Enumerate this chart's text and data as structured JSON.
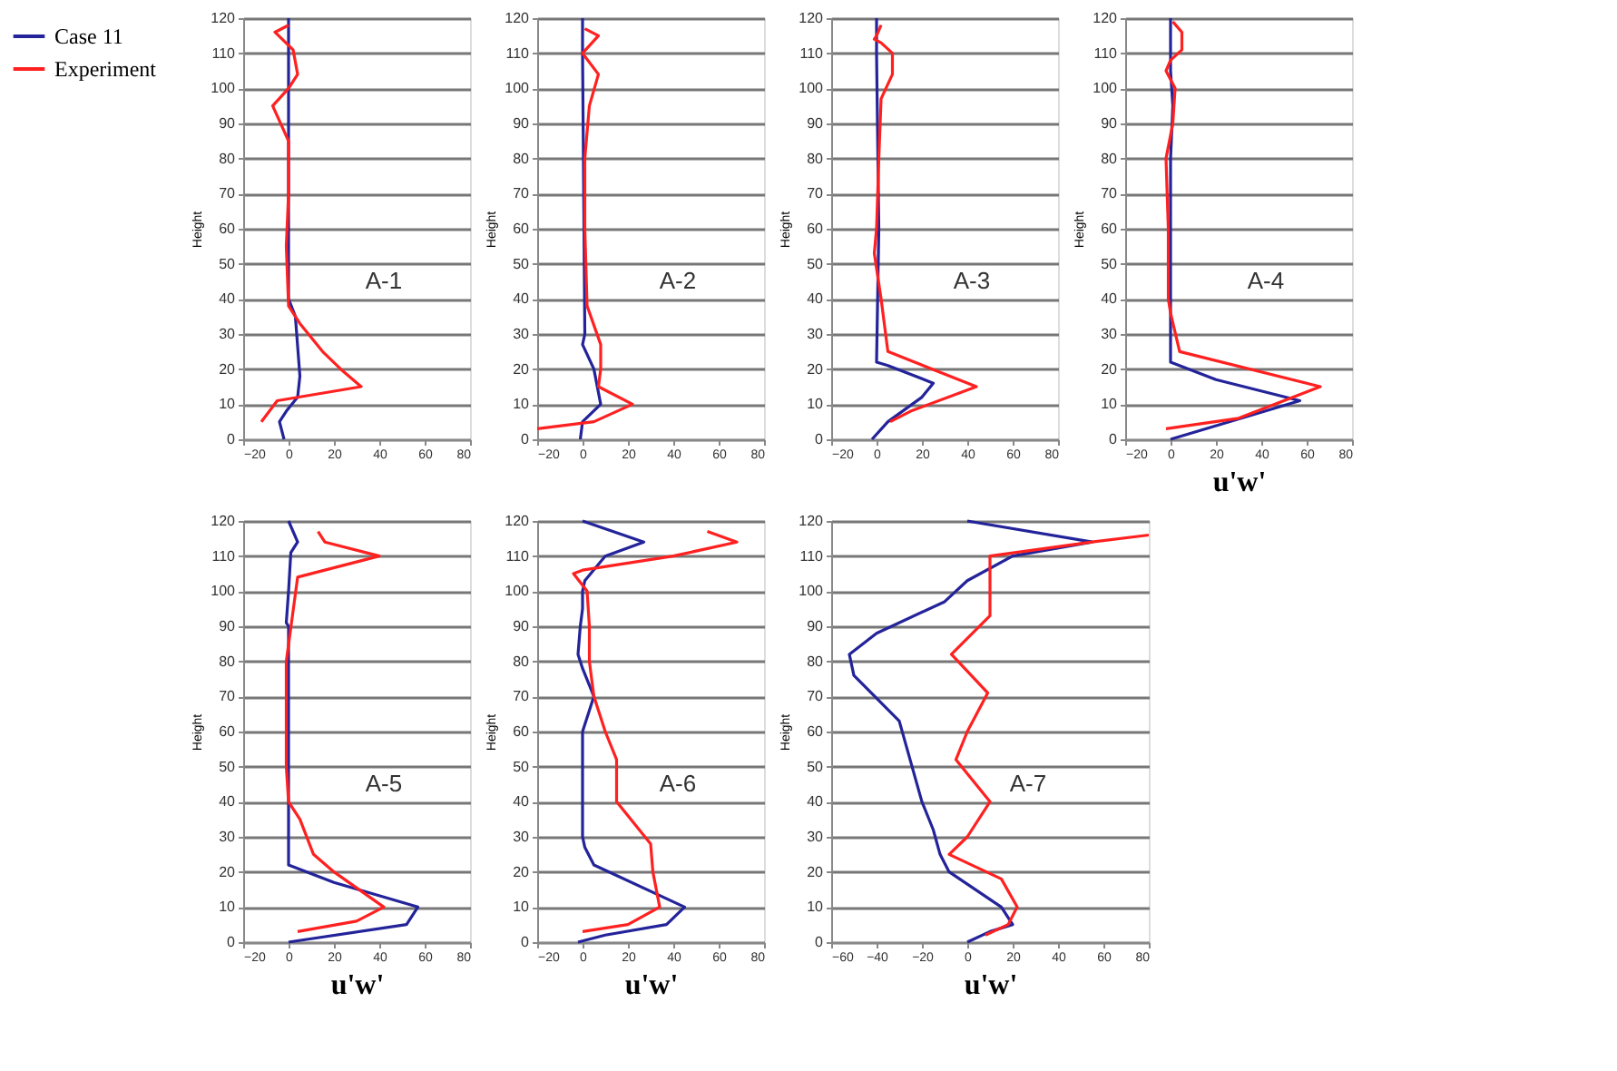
{
  "chart_data": [
    {
      "type": "line",
      "ylabel": "Height",
      "annotations": [
        "A-1"
      ],
      "xlim": [
        -20,
        80
      ],
      "xticks": [
        -20,
        0,
        20,
        40,
        60,
        80
      ],
      "ylim": [
        0,
        120
      ],
      "yticks": [
        0,
        10,
        20,
        30,
        40,
        50,
        60,
        70,
        80,
        90,
        100,
        110,
        120
      ],
      "grid": "y",
      "legend": "left",
      "series": [
        {
          "name": "Case 11",
          "color": "#23239a",
          "x": [
            0,
            0,
            0,
            3,
            5,
            4,
            -1,
            -4,
            -2
          ],
          "values": [
            120,
            85,
            40,
            35,
            18,
            12,
            8,
            5,
            0
          ]
        },
        {
          "name": "Experiment",
          "color": "#ff2020",
          "x": [
            0,
            -6,
            2,
            4,
            0,
            -7,
            0,
            0,
            -1,
            0,
            5,
            15,
            23,
            32,
            -5,
            -12
          ],
          "values": [
            118,
            116,
            111,
            104,
            100,
            95,
            85,
            70,
            55,
            38,
            33,
            25,
            20,
            15,
            11,
            5
          ]
        }
      ]
    },
    {
      "type": "line",
      "ylabel": "Height",
      "annotations": [
        "A-2"
      ],
      "xlim": [
        -20,
        80
      ],
      "xticks": [
        -20,
        0,
        20,
        40,
        60,
        80
      ],
      "ylim": [
        0,
        120
      ],
      "yticks": [
        0,
        10,
        20,
        30,
        40,
        50,
        60,
        70,
        80,
        90,
        100,
        110,
        120
      ],
      "grid": "y",
      "series": [
        {
          "color": "#23239a",
          "x": [
            0,
            0,
            1,
            0,
            5,
            8,
            0,
            -1
          ],
          "values": [
            120,
            110,
            30,
            27,
            20,
            10,
            5,
            0
          ]
        },
        {
          "color": "#ff2020",
          "x": [
            1,
            7,
            0,
            7,
            3,
            1,
            1,
            2,
            8,
            8,
            7,
            22,
            5,
            -20
          ],
          "values": [
            117,
            115,
            110,
            104,
            95,
            80,
            60,
            38,
            27,
            20,
            15,
            10,
            5,
            3
          ]
        }
      ]
    },
    {
      "type": "line",
      "ylabel": "Height",
      "annotations": [
        "A-3"
      ],
      "xlim": [
        -20,
        80
      ],
      "xticks": [
        -20,
        0,
        20,
        40,
        60,
        80
      ],
      "ylim": [
        0,
        120
      ],
      "yticks": [
        0,
        10,
        20,
        30,
        40,
        50,
        60,
        70,
        80,
        90,
        100,
        110,
        120
      ],
      "grid": "y",
      "series": [
        {
          "color": "#23239a",
          "x": [
            0,
            0,
            1,
            0,
            5,
            25,
            20,
            5,
            -2
          ],
          "values": [
            120,
            110,
            60,
            22,
            21,
            16,
            12,
            5,
            0
          ]
        },
        {
          "color": "#ff2020",
          "x": [
            2,
            0,
            -1,
            2,
            7,
            7,
            2,
            1,
            0,
            -1,
            2,
            5,
            44,
            15,
            6
          ],
          "values": [
            118,
            115,
            114,
            113,
            110,
            104,
            97,
            80,
            60,
            53,
            40,
            25,
            15,
            8,
            5
          ]
        }
      ]
    },
    {
      "type": "line",
      "xlabel": "u'w'",
      "ylabel": "Height",
      "annotations": [
        "A-4"
      ],
      "xlim": [
        -20,
        80
      ],
      "xticks": [
        -20,
        0,
        20,
        40,
        60,
        80
      ],
      "ylim": [
        0,
        120
      ],
      "yticks": [
        0,
        10,
        20,
        30,
        40,
        50,
        60,
        70,
        80,
        90,
        100,
        110,
        120
      ],
      "grid": "y",
      "series": [
        {
          "color": "#23239a",
          "x": [
            0,
            0,
            1,
            0,
            0,
            0,
            20,
            57,
            0
          ],
          "values": [
            120,
            105,
            95,
            80,
            40,
            22,
            17,
            11,
            0
          ]
        },
        {
          "color": "#ff2020",
          "x": [
            1,
            5,
            5,
            0,
            -2,
            2,
            1,
            -2,
            -1,
            -1,
            0,
            4,
            66,
            30,
            -2
          ],
          "values": [
            119,
            116,
            111,
            108,
            105,
            100,
            90,
            80,
            60,
            40,
            36,
            25,
            15,
            6,
            3
          ]
        }
      ]
    },
    {
      "type": "line",
      "xlabel": "u'w'",
      "ylabel": "Height",
      "annotations": [
        "A-5"
      ],
      "xlim": [
        -20,
        80
      ],
      "xticks": [
        -20,
        0,
        20,
        40,
        60,
        80
      ],
      "ylim": [
        0,
        120
      ],
      "yticks": [
        0,
        10,
        20,
        30,
        40,
        50,
        60,
        70,
        80,
        90,
        100,
        110,
        120
      ],
      "grid": "y",
      "series": [
        {
          "color": "#23239a",
          "x": [
            0,
            4,
            1,
            0,
            -1,
            0,
            0,
            0,
            20,
            57,
            52,
            0
          ],
          "values": [
            120,
            114,
            111,
            100,
            91,
            90,
            40,
            22,
            17,
            10,
            5,
            0
          ]
        },
        {
          "color": "#ff2020",
          "x": [
            13,
            16,
            40,
            4,
            -1,
            -1,
            0,
            5,
            11,
            20,
            42,
            30,
            4
          ],
          "values": [
            117,
            114,
            110,
            104,
            80,
            50,
            40,
            35,
            25,
            20,
            10,
            6,
            3
          ]
        }
      ]
    },
    {
      "type": "line",
      "xlabel": "u'w'",
      "ylabel": "Height",
      "annotations": [
        "A-6"
      ],
      "xlim": [
        -20,
        80
      ],
      "xticks": [
        -20,
        0,
        20,
        40,
        60,
        80
      ],
      "ylim": [
        0,
        120
      ],
      "yticks": [
        0,
        10,
        20,
        30,
        40,
        50,
        60,
        70,
        80,
        90,
        100,
        110,
        120
      ],
      "grid": "y",
      "series": [
        {
          "color": "#23239a",
          "x": [
            0,
            27,
            10,
            1,
            0,
            0,
            -1,
            -2,
            0,
            5,
            0,
            0,
            0,
            1,
            5,
            45,
            37,
            10,
            -2
          ],
          "values": [
            120,
            114,
            110,
            103,
            100,
            95,
            90,
            82,
            78,
            70,
            60,
            50,
            30,
            27,
            22,
            10,
            5,
            2,
            0
          ]
        },
        {
          "color": "#ff2020",
          "x": [
            55,
            68,
            40,
            0,
            -4,
            2,
            3,
            3,
            5,
            10,
            15,
            15,
            25,
            30,
            31,
            34,
            20,
            0
          ],
          "values": [
            117,
            114,
            110,
            106,
            105,
            100,
            90,
            80,
            70,
            60,
            52,
            40,
            32,
            28,
            20,
            10,
            5,
            3
          ]
        }
      ]
    },
    {
      "type": "line",
      "xlabel": "u'w'",
      "ylabel": "Height",
      "annotations": [
        "A-7"
      ],
      "xlim": [
        -60,
        80
      ],
      "xticks": [
        -60,
        -40,
        -20,
        0,
        20,
        40,
        60,
        80
      ],
      "ylim": [
        0,
        120
      ],
      "yticks": [
        0,
        10,
        20,
        30,
        40,
        50,
        60,
        70,
        80,
        90,
        100,
        110,
        120
      ],
      "grid": "y",
      "series": [
        {
          "color": "#23239a",
          "x": [
            0,
            55,
            20,
            0,
            -10,
            -40,
            -52,
            -50,
            -30,
            -20,
            -15,
            -12,
            -8,
            15,
            20,
            10,
            0
          ],
          "values": [
            120,
            114,
            110,
            103,
            97,
            88,
            82,
            76,
            63,
            40,
            32,
            25,
            20,
            10,
            5,
            3,
            0
          ]
        },
        {
          "color": "#ff2020",
          "x": [
            80,
            55,
            10,
            10,
            10,
            -7,
            9,
            0,
            -5,
            10,
            0,
            -8,
            15,
            22,
            18,
            8
          ],
          "values": [
            116,
            114,
            110,
            100,
            93,
            82,
            71,
            60,
            52,
            40,
            30,
            25,
            18,
            10,
            5,
            2
          ]
        }
      ]
    }
  ]
}
